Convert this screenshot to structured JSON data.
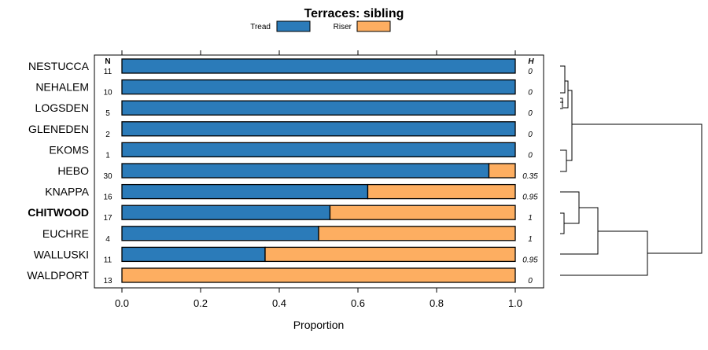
{
  "chart_data": {
    "type": "bar",
    "subtype": "stacked-horizontal-proportion",
    "title": "Terraces: sibling",
    "xlabel": "Proportion",
    "ylabel": "",
    "xlim": [
      0,
      1
    ],
    "xticks": [
      "0.0",
      "0.2",
      "0.4",
      "0.6",
      "0.8",
      "1.0"
    ],
    "xtick_values": [
      0,
      0.2,
      0.4,
      0.6,
      0.8,
      1.0
    ],
    "legend": [
      {
        "name": "Tread",
        "color": "#2B7BB9"
      },
      {
        "name": "Riser",
        "color": "#FDAE61"
      }
    ],
    "legend_position": "top",
    "n_header": "N",
    "h_header": "H",
    "highlight_category": "CHITWOOD",
    "categories": [
      "NESTUCCA",
      "NEHALEM",
      "LOGSDEN",
      "GLENEDEN",
      "EKOMS",
      "HEBO",
      "KNAPPA",
      "CHITWOOD",
      "EUCHRE",
      "WALLUSKI",
      "WALDPORT"
    ],
    "n_values": [
      "11",
      "10",
      "5",
      "2",
      "1",
      "30",
      "16",
      "17",
      "4",
      "11",
      "13"
    ],
    "h_values": [
      "0",
      "0",
      "0",
      "0",
      "0",
      "0.35",
      "0.95",
      "1",
      "1",
      "0.95",
      "0"
    ],
    "series": [
      {
        "name": "Tread",
        "values": [
          1.0,
          1.0,
          1.0,
          1.0,
          1.0,
          0.933,
          0.625,
          0.529,
          0.5,
          0.364,
          0.0
        ]
      },
      {
        "name": "Riser",
        "values": [
          0.0,
          0.0,
          0.0,
          0.0,
          0.0,
          0.067,
          0.375,
          0.471,
          0.5,
          0.636,
          1.0
        ]
      }
    ],
    "dendrogram": "hierarchical clustering of rows"
  }
}
